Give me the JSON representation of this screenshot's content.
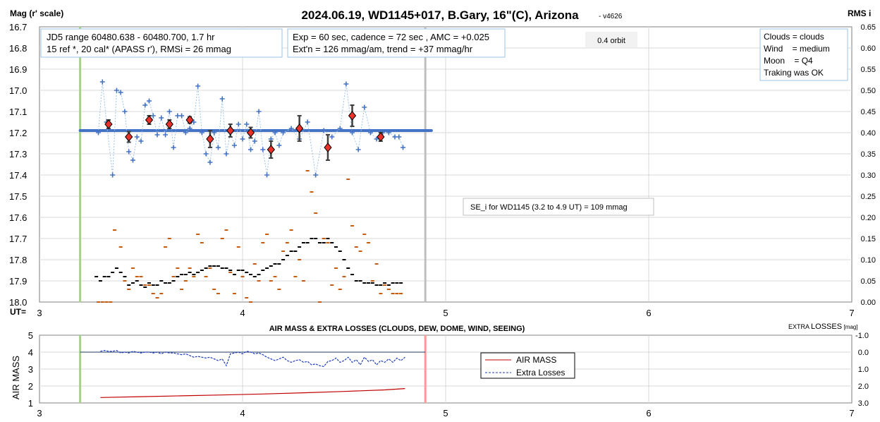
{
  "chart_data": [
    {
      "type": "scatter",
      "title": "2024.06.19, WD1145+017, B.Gary, 16\"(C), Arizona",
      "version": "- v4626",
      "ylabel": "Mag (r' scale)",
      "y2label": "RMS i",
      "xlabel": "UT=",
      "xlim": [
        3,
        7
      ],
      "ylim": [
        16.7,
        18.0
      ],
      "y2lim": [
        0,
        0.65
      ],
      "x_ticks": [
        "3",
        "4",
        "5",
        "6",
        "7"
      ],
      "y_ticks": [
        "16.7",
        "16.8",
        "16.9",
        "17.0",
        "17.1",
        "17.2",
        "17.3",
        "17.4",
        "17.5",
        "17.6",
        "17.7",
        "17.8",
        "17.9",
        "18.0"
      ],
      "y2_ticks": [
        "0.65",
        "0.60",
        "0.55",
        "0.50",
        "0.45",
        "0.40",
        "0.35",
        "0.30",
        "0.25",
        "0.20",
        "0.15",
        "0.10",
        "0.05",
        "0.00"
      ],
      "grid": true,
      "annotations": {
        "box1_line1": "JD5 range 60480.638 - 60480.700, 1.7 hr",
        "box1_line2": "15 ref *, 20 cal*  (APASS r'), RMSi = 26 mmag",
        "box2_line1": "Exp = 60 sec, cadence = 72 sec , AMC = +0.025",
        "box2_line2": "Ext'n = 126 mmag/am, trend = +37 mmag/hr",
        "orbit": "0.4 orbit",
        "box3_line1": "Clouds = clouds",
        "box3_line2": "Wind    = medium",
        "box3_line3": "Moon    = Q4",
        "box3_line4": "Traking was OK",
        "se_text": "SE_i for WD1145 (3.2 to 4.9 UT) = 109 mmag"
      },
      "vlines": [
        {
          "x": 3.2,
          "color": "#a9d18e"
        },
        {
          "x": 4.9,
          "color": "#bfbfbf"
        }
      ],
      "model_line": {
        "x": [
          3.2,
          4.93
        ],
        "y": 17.19,
        "color": "#4472c4"
      },
      "series": [
        {
          "marker": "plus",
          "color": "#4472c4",
          "x": [
            3.29,
            3.31,
            3.33,
            3.36,
            3.38,
            3.4,
            3.42,
            3.44,
            3.46,
            3.48,
            3.5,
            3.52,
            3.54,
            3.56,
            3.58,
            3.6,
            3.62,
            3.64,
            3.66,
            3.68,
            3.7,
            3.72,
            3.74,
            3.76,
            3.78,
            3.8,
            3.82,
            3.84,
            3.86,
            3.88,
            3.9,
            3.92,
            3.94,
            3.96,
            3.98,
            4.0,
            4.02,
            4.04,
            4.06,
            4.08,
            4.1,
            4.12,
            4.14,
            4.16,
            4.18,
            4.2,
            4.24,
            4.28,
            4.32,
            4.36,
            4.4,
            4.44,
            4.48,
            4.51,
            4.54,
            4.57,
            4.6,
            4.63,
            4.66,
            4.69,
            4.72,
            4.75,
            4.77,
            4.79
          ],
          "y": [
            17.2,
            16.96,
            17.15,
            17.4,
            17.0,
            17.01,
            17.1,
            17.29,
            17.33,
            17.22,
            17.24,
            17.07,
            17.05,
            17.12,
            17.21,
            17.13,
            17.21,
            17.1,
            17.27,
            17.12,
            17.12,
            17.2,
            17.18,
            17.15,
            16.98,
            17.2,
            17.3,
            17.34,
            17.2,
            17.27,
            17.04,
            17.3,
            17.2,
            17.26,
            17.16,
            17.23,
            17.16,
            17.28,
            17.24,
            17.1,
            17.28,
            17.4,
            17.23,
            17.2,
            17.26,
            17.2,
            17.18,
            17.23,
            17.15,
            17.4,
            17.19,
            17.22,
            17.18,
            16.97,
            17.2,
            17.28,
            17.08,
            17.2,
            17.23,
            17.2,
            17.2,
            17.22,
            17.22,
            17.27
          ]
        },
        {
          "marker": "diamond",
          "color": "#e8312a",
          "x": [
            3.34,
            3.44,
            3.54,
            3.64,
            3.74,
            3.84,
            3.94,
            4.04,
            4.14,
            4.28,
            4.42,
            4.54,
            4.68
          ],
          "y": [
            17.16,
            17.22,
            17.14,
            17.16,
            17.14,
            17.23,
            17.19,
            17.2,
            17.28,
            17.18,
            17.27,
            17.12,
            17.22
          ],
          "err": [
            0.02,
            0.025,
            0.02,
            0.02,
            0.015,
            0.04,
            0.03,
            0.025,
            0.04,
            0.06,
            0.06,
            0.05,
            0.02
          ]
        },
        {
          "marker": "dash",
          "color": "#000000",
          "axis": "y2",
          "x": [
            3.28,
            3.3,
            3.32,
            3.34,
            3.36,
            3.38,
            3.4,
            3.42,
            3.44,
            3.46,
            3.48,
            3.5,
            3.52,
            3.54,
            3.56,
            3.58,
            3.6,
            3.62,
            3.64,
            3.66,
            3.68,
            3.7,
            3.72,
            3.74,
            3.76,
            3.78,
            3.8,
            3.82,
            3.84,
            3.86,
            3.88,
            3.9,
            3.92,
            3.94,
            3.96,
            3.98,
            4.0,
            4.02,
            4.04,
            4.06,
            4.08,
            4.1,
            4.12,
            4.14,
            4.16,
            4.18,
            4.2,
            4.22,
            4.24,
            4.26,
            4.28,
            4.3,
            4.32,
            4.34,
            4.36,
            4.38,
            4.4,
            4.42,
            4.44,
            4.46,
            4.48,
            4.5,
            4.52,
            4.54,
            4.56,
            4.58,
            4.6,
            4.62,
            4.64,
            4.66,
            4.68,
            4.7,
            4.72,
            4.74,
            4.76,
            4.78
          ],
          "y": [
            0.06,
            0.05,
            0.06,
            0.06,
            0.07,
            0.08,
            0.07,
            0.06,
            0.04,
            0.045,
            0.05,
            0.04,
            0.035,
            0.045,
            0.04,
            0.04,
            0.05,
            0.045,
            0.045,
            0.05,
            0.06,
            0.065,
            0.065,
            0.07,
            0.065,
            0.07,
            0.075,
            0.08,
            0.085,
            0.085,
            0.085,
            0.08,
            0.08,
            0.075,
            0.065,
            0.075,
            0.075,
            0.07,
            0.065,
            0.06,
            0.065,
            0.075,
            0.08,
            0.085,
            0.09,
            0.09,
            0.1,
            0.11,
            0.12,
            0.12,
            0.13,
            0.14,
            0.14,
            0.15,
            0.15,
            0.14,
            0.14,
            0.15,
            0.14,
            0.13,
            0.12,
            0.1,
            0.08,
            0.065,
            0.05,
            0.05,
            0.045,
            0.045,
            0.045,
            0.04,
            0.04,
            0.045,
            0.04,
            0.045,
            0.045,
            0.045
          ]
        },
        {
          "marker": "dash",
          "color": "#c55a11",
          "axis": "y2",
          "x": [
            3.29,
            3.31,
            3.33,
            3.35,
            3.37,
            3.4,
            3.42,
            3.44,
            3.46,
            3.48,
            3.5,
            3.52,
            3.54,
            3.56,
            3.58,
            3.6,
            3.62,
            3.64,
            3.66,
            3.68,
            3.7,
            3.72,
            3.74,
            3.76,
            3.78,
            3.8,
            3.82,
            3.84,
            3.86,
            3.88,
            3.9,
            3.92,
            3.94,
            3.96,
            3.98,
            4.0,
            4.02,
            4.04,
            4.06,
            4.08,
            4.1,
            4.12,
            4.14,
            4.16,
            4.18,
            4.2,
            4.22,
            4.24,
            4.26,
            4.28,
            4.3,
            4.32,
            4.34,
            4.36,
            4.38,
            4.4,
            4.42,
            4.44,
            4.46,
            4.48,
            4.5,
            4.52,
            4.54,
            4.56,
            4.58,
            4.6,
            4.62,
            4.64,
            4.66,
            4.68,
            4.7,
            4.72,
            4.74,
            4.76,
            4.78
          ],
          "y": [
            0.0,
            0.0,
            0.0,
            0.0,
            0.17,
            0.13,
            0.05,
            0.03,
            0.08,
            0.06,
            0.06,
            0.04,
            0.04,
            0.02,
            0.01,
            0.02,
            0.13,
            0.15,
            0.06,
            0.08,
            0.03,
            0.05,
            0.08,
            0.06,
            0.16,
            0.14,
            0.06,
            0.08,
            0.03,
            0.02,
            0.15,
            0.17,
            0.07,
            0.02,
            0.13,
            0.06,
            0.01,
            0.0,
            0.09,
            0.05,
            0.14,
            0.16,
            0.05,
            0.06,
            0.03,
            0.12,
            0.14,
            0.17,
            0.06,
            0.1,
            0.05,
            0.31,
            0.26,
            0.21,
            0.0,
            0.15,
            0.14,
            0.04,
            0.08,
            0.03,
            0.06,
            0.29,
            0.18,
            0.13,
            0.12,
            0.16,
            0.14,
            0.05,
            0.09,
            0.02,
            0.04,
            0.03,
            0.02,
            0.02,
            0.02
          ]
        }
      ]
    },
    {
      "type": "line",
      "title": "AIR MASS & EXTRA LOSSES (CLOUDS, DEW, DOME, WIND, SEEING)",
      "ylabel": "AIR MASS",
      "y2label": "EXTRA LOSSES [mag]",
      "y2label_main": "EXTRA",
      "y2label_mid": "LOSSES",
      "y2label_unit": "[mag]",
      "xlim": [
        3,
        7
      ],
      "ylim": [
        1,
        5
      ],
      "y2lim": [
        3.0,
        -1.0
      ],
      "x_ticks": [
        "3",
        "4",
        "5",
        "6",
        "7"
      ],
      "y_ticks": [
        "5",
        "4",
        "3",
        "2",
        "1"
      ],
      "y2_ticks": [
        "-1.0",
        "0.0",
        "1.0",
        "2.0",
        "3.0"
      ],
      "grid": true,
      "legend": "center-right",
      "vlines": [
        {
          "x": 3.2,
          "color": "#a9d18e"
        },
        {
          "x": 4.9,
          "color": "#ff9999"
        }
      ],
      "baseline": {
        "y": 4.0,
        "x": [
          3.2,
          4.9
        ],
        "color": "#1f3864"
      },
      "series": [
        {
          "name": "AIR MASS",
          "color": "#c00000",
          "style": "solid",
          "x": [
            3.3,
            3.5,
            3.7,
            3.9,
            4.1,
            4.3,
            4.5,
            4.7,
            4.8
          ],
          "y": [
            1.32,
            1.37,
            1.42,
            1.47,
            1.53,
            1.6,
            1.68,
            1.77,
            1.85
          ]
        },
        {
          "name": "Extra Losses",
          "color": "#1f3cbf",
          "style": "dashed",
          "x": [
            3.3,
            3.32,
            3.34,
            3.36,
            3.38,
            3.4,
            3.42,
            3.44,
            3.46,
            3.48,
            3.5,
            3.52,
            3.54,
            3.56,
            3.58,
            3.6,
            3.62,
            3.64,
            3.66,
            3.68,
            3.7,
            3.72,
            3.74,
            3.76,
            3.78,
            3.8,
            3.82,
            3.84,
            3.86,
            3.88,
            3.9,
            3.92,
            3.94,
            3.96,
            3.98,
            4.0,
            4.02,
            4.04,
            4.06,
            4.08,
            4.1,
            4.12,
            4.14,
            4.16,
            4.18,
            4.2,
            4.22,
            4.24,
            4.26,
            4.28,
            4.3,
            4.32,
            4.34,
            4.36,
            4.38,
            4.4,
            4.42,
            4.44,
            4.46,
            4.48,
            4.5,
            4.52,
            4.54,
            4.56,
            4.58,
            4.6,
            4.62,
            4.64,
            4.66,
            4.68,
            4.7,
            4.72,
            4.74,
            4.76,
            4.78,
            4.8
          ],
          "y": [
            -0.05,
            -0.1,
            -0.05,
            -0.05,
            -0.1,
            0.05,
            0.0,
            0.05,
            -0.05,
            0.0,
            0.05,
            0.0,
            0.0,
            0.05,
            0.0,
            0.1,
            0.0,
            0.05,
            0.05,
            0.1,
            0.15,
            0.1,
            0.2,
            0.3,
            0.25,
            0.3,
            0.35,
            0.3,
            0.4,
            0.5,
            0.4,
            0.8,
            0.1,
            0.05,
            0.0,
            0.1,
            -0.05,
            0.0,
            0.1,
            0.05,
            0.15,
            0.3,
            0.4,
            0.5,
            0.4,
            0.3,
            0.5,
            0.6,
            0.5,
            0.45,
            0.6,
            0.55,
            0.75,
            0.7,
            0.8,
            0.85,
            0.55,
            0.5,
            0.35,
            0.6,
            0.5,
            0.3,
            0.6,
            0.45,
            0.75,
            0.3,
            0.55,
            0.45,
            0.75,
            0.5,
            0.6,
            0.4,
            0.6,
            0.35,
            0.5,
            0.3
          ]
        }
      ]
    }
  ]
}
